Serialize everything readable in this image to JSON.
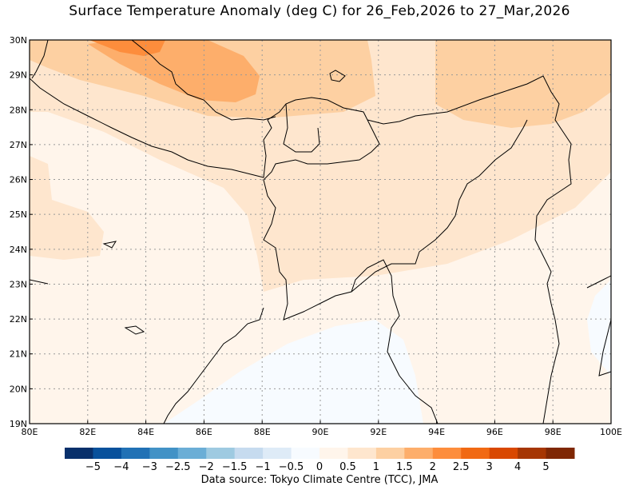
{
  "title": "Surface Temperature Anomaly (deg C) for 26_Feb,2026 to  27_Mar,2026",
  "map": {
    "lon_range": [
      80,
      100
    ],
    "lat_range": [
      19,
      30
    ],
    "lon_labels": [
      "80E",
      "82E",
      "84E",
      "86E",
      "88E",
      "90E",
      "92E",
      "94E",
      "96E",
      "98E",
      "100E"
    ],
    "lat_labels": [
      "30N",
      "29N",
      "28N",
      "27N",
      "26N",
      "25N",
      "24N",
      "23N",
      "22N",
      "21N",
      "20N",
      "19N"
    ]
  },
  "colorbar": {
    "colors": [
      "#08306b",
      "#08519c",
      "#2171b5",
      "#4292c6",
      "#6baed6",
      "#9ecae1",
      "#c6dbef",
      "#deebf7",
      "#f7fbff",
      "#fff5eb",
      "#fee6ce",
      "#fdd0a2",
      "#fdae6b",
      "#fd8d3c",
      "#f16913",
      "#d94801",
      "#a63603",
      "#7f2704"
    ],
    "labels": [
      "−5",
      "−4",
      "−3",
      "−2.5",
      "−2",
      "−1.5",
      "−1",
      "−0.5",
      "0",
      "0.5",
      "1",
      "1.5",
      "2",
      "2.5",
      "3",
      "4",
      "5"
    ]
  },
  "source": "Data source: Tokyo Climate Centre (TCC), JMA"
}
